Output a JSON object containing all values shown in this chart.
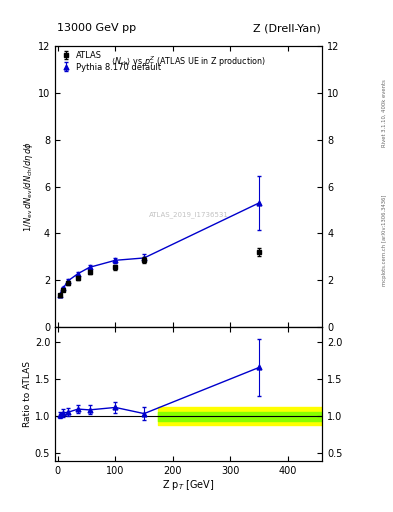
{
  "title_left": "13000 GeV pp",
  "title_right": "Z (Drell-Yan)",
  "rivet_label": "Rivet 3.1.10, 400k events",
  "arxiv_label": "mcplots.cern.ch [arXiv:1306.3436]",
  "watermark": "ATLAS_2019_I1736531",
  "ylabel_ratio": "Ratio to ATLAS",
  "xlabel": "Z p_{T} [GeV]",
  "ylim_main": [
    0,
    12
  ],
  "ylim_ratio": [
    0.4,
    2.2
  ],
  "yticks_main": [
    0,
    2,
    4,
    6,
    8,
    10,
    12
  ],
  "yticks_ratio": [
    0.5,
    1.0,
    1.5,
    2.0
  ],
  "xlim": [
    -5,
    460
  ],
  "atlas_x": [
    3.0,
    9.0,
    18.0,
    35.0,
    55.0,
    100.0,
    150.0,
    350.0
  ],
  "atlas_y": [
    1.35,
    1.58,
    1.88,
    2.08,
    2.35,
    2.55,
    2.85,
    3.2
  ],
  "atlas_yerr": [
    0.05,
    0.06,
    0.07,
    0.08,
    0.09,
    0.1,
    0.12,
    0.18
  ],
  "pythia_x": [
    3.0,
    9.0,
    18.0,
    35.0,
    55.0,
    100.0,
    150.0,
    350.0
  ],
  "pythia_y": [
    1.38,
    1.65,
    1.98,
    2.28,
    2.55,
    2.85,
    2.95,
    5.3
  ],
  "pythia_yerr": [
    0.04,
    0.05,
    0.06,
    0.07,
    0.08,
    0.1,
    0.15,
    1.15
  ],
  "ratio_x": [
    3.0,
    9.0,
    18.0,
    35.0,
    55.0,
    100.0,
    150.0,
    350.0
  ],
  "ratio_y": [
    1.022,
    1.045,
    1.054,
    1.096,
    1.085,
    1.118,
    1.035,
    1.656
  ],
  "ratio_yerr": [
    0.04,
    0.05,
    0.055,
    0.055,
    0.06,
    0.075,
    0.09,
    0.38
  ],
  "band_x_start": 175.0,
  "band_x_end": 460.0,
  "band_yellow_lo": 0.875,
  "band_yellow_hi": 1.125,
  "band_green_lo": 0.94,
  "band_green_hi": 1.06,
  "atlas_color": "#000000",
  "pythia_color": "#0000cc",
  "background_color": "#ffffff"
}
